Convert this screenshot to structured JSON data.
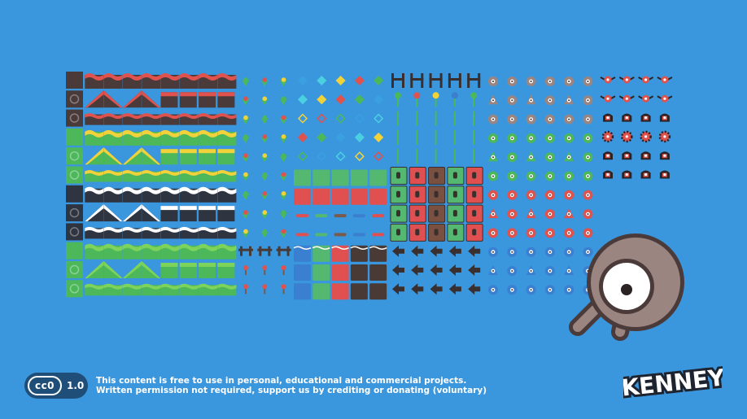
{
  "colors": {
    "background": "#3a96dd",
    "ground_dark": "#2e3440",
    "ground_brown": "#4a3a3a",
    "grass_red": "#e0524d",
    "grass_yellow": "#f2d23a",
    "grass_green": "#4cb85a",
    "tile_green": "#55b870",
    "tile_red": "#e05050",
    "tile_blue": "#3a7fd0",
    "wood": "#4a3a36",
    "enemy_grey": "#9a8580",
    "enemy_red": "#e0524d",
    "enemy_green": "#4cb85a",
    "enemy_blue": "#3a7fd0",
    "icon_dark": "#3a2f2f"
  },
  "sections": {
    "terrain_tiles": {
      "rows": 12,
      "cols": 9
    },
    "plants": {
      "rows": 12,
      "cols": 3
    },
    "gems_and_blocks": {
      "rows": 12,
      "cols": 5
    },
    "doors_and_arrows": {
      "rows": 12,
      "cols": 5
    },
    "enemies": {
      "rows": 12,
      "cols": 6
    },
    "flyers": {
      "rows": 6,
      "cols": 4
    }
  },
  "mascot": {
    "icon": "magnifier-eye-icon"
  },
  "license": {
    "badge": "cc0",
    "version": "1.0",
    "line1": "This content is free to use in personal, educational and commercial projects.",
    "line2": "Written permission not required, support us by crediting or donating (voluntary)"
  },
  "brand": {
    "name": "KENNEY"
  }
}
